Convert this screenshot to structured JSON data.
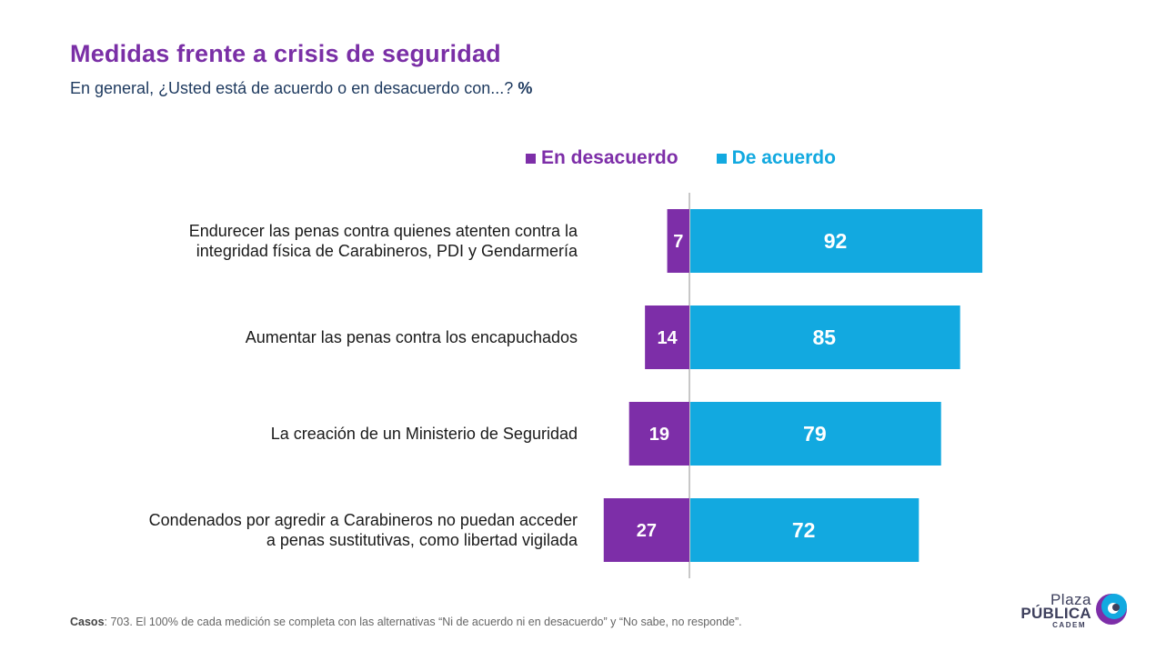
{
  "header": {
    "title": "Medidas frente a crisis de seguridad",
    "subtitle": "En general, ¿Usted está de acuerdo o en desacuerdo con...?",
    "subtitle_unit": "%"
  },
  "legend": {
    "disagree_label": "En desacuerdo",
    "agree_label": "De acuerdo"
  },
  "colors": {
    "disagree": "#7d2ea8",
    "agree": "#12a9e0",
    "title": "#7a2fa6"
  },
  "chart_data": {
    "type": "bar",
    "orientation": "horizontal-diverging",
    "categories": [
      "Endurecer las penas contra quienes atenten contra la integridad física de Carabineros, PDI y Gendarmería",
      "Aumentar las penas contra los encapuchados",
      "La creación de un Ministerio de Seguridad",
      "Condenados por agredir a Carabineros no puedan acceder a penas sustitutivas, como libertad vigilada"
    ],
    "series": [
      {
        "name": "En desacuerdo",
        "values": [
          7,
          14,
          19,
          27
        ]
      },
      {
        "name": "De acuerdo",
        "values": [
          92,
          85,
          79,
          72
        ]
      }
    ],
    "legend_position": "top"
  },
  "footer": {
    "cases_label": "Casos",
    "text": ": 703. El 100% de cada medición se completa con las alternativas “Ni de acuerdo ni en desacuerdo” y “No sabe, no responde”."
  },
  "logo": {
    "line1": "Plaza",
    "line2": "PÚBLICA",
    "line3": "CADEM"
  }
}
